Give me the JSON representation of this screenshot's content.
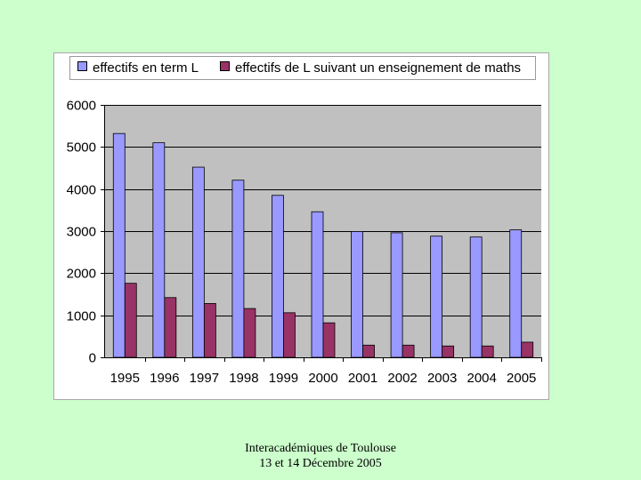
{
  "chart_data": {
    "type": "bar",
    "categories": [
      "1995",
      "1996",
      "1997",
      "1998",
      "1999",
      "2000",
      "2001",
      "2002",
      "2003",
      "2004",
      "2005"
    ],
    "series": [
      {
        "name": "effectifs en term L",
        "color": "#9999ff",
        "values": [
          5320,
          5100,
          4520,
          4210,
          3850,
          3460,
          2990,
          2960,
          2880,
          2860,
          3030
        ]
      },
      {
        "name": "effectifs de L suivant un enseignement de maths",
        "color": "#993366",
        "values": [
          1760,
          1420,
          1280,
          1160,
          1060,
          820,
          290,
          290,
          270,
          270,
          360
        ]
      }
    ],
    "ylim": [
      0,
      6000
    ],
    "yticks": [
      0,
      1000,
      2000,
      3000,
      4000,
      5000,
      6000
    ],
    "grid": true,
    "plot_background": "#c0c0c0",
    "legend_position": "top"
  },
  "footer": {
    "line1": "Interacadémiques de Toulouse",
    "line2": "13 et 14 Décembre 2005"
  }
}
